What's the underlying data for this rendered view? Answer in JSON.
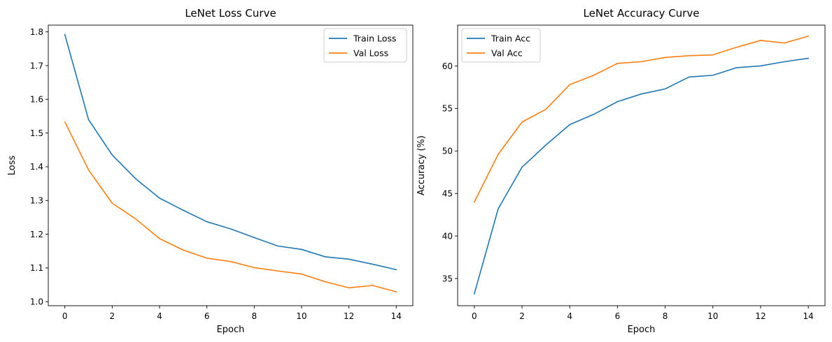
{
  "chart_data": [
    {
      "type": "line",
      "title": "LeNet Loss Curve",
      "xlabel": "Epoch",
      "ylabel": "Loss",
      "x": [
        0,
        1,
        2,
        3,
        4,
        5,
        6,
        7,
        8,
        9,
        10,
        11,
        12,
        13,
        14
      ],
      "xlim": [
        -0.7,
        14.7
      ],
      "ylim": [
        0.988,
        1.82
      ],
      "xticks": [
        0,
        2,
        4,
        6,
        8,
        10,
        12,
        14
      ],
      "yticks": [
        1.0,
        1.1,
        1.2,
        1.3,
        1.4,
        1.5,
        1.6,
        1.7,
        1.8
      ],
      "ytick_decimals": 1,
      "grid": false,
      "legend_position": "top-right",
      "series": [
        {
          "name": "Train Loss",
          "color": "#1f77b4",
          "values": [
            1.792,
            1.54,
            1.435,
            1.364,
            1.307,
            1.271,
            1.237,
            1.216,
            1.19,
            1.165,
            1.155,
            1.133,
            1.126,
            1.111,
            1.095
          ]
        },
        {
          "name": "Val Loss",
          "color": "#ff7f0e",
          "values": [
            1.533,
            1.391,
            1.292,
            1.245,
            1.187,
            1.153,
            1.129,
            1.119,
            1.101,
            1.091,
            1.082,
            1.059,
            1.041,
            1.048,
            1.029
          ]
        }
      ]
    },
    {
      "type": "line",
      "title": "LeNet Accuracy Curve",
      "xlabel": "Epoch",
      "ylabel": "Accuracy (%)",
      "x": [
        0,
        1,
        2,
        3,
        4,
        5,
        6,
        7,
        8,
        9,
        10,
        11,
        12,
        13,
        14
      ],
      "xlim": [
        -0.7,
        14.7
      ],
      "ylim": [
        31.8,
        64.8
      ],
      "xticks": [
        0,
        2,
        4,
        6,
        8,
        10,
        12,
        14
      ],
      "yticks": [
        35,
        40,
        45,
        50,
        55,
        60
      ],
      "ytick_decimals": 0,
      "grid": false,
      "legend_position": "top-left",
      "series": [
        {
          "name": "Train Acc",
          "color": "#1f77b4",
          "values": [
            33.2,
            43.2,
            48.1,
            50.7,
            53.1,
            54.3,
            55.8,
            56.7,
            57.3,
            58.7,
            58.9,
            59.8,
            60.0,
            60.5,
            60.9
          ]
        },
        {
          "name": "Val Acc",
          "color": "#ff7f0e",
          "values": [
            44.0,
            49.6,
            53.4,
            54.9,
            57.8,
            58.9,
            60.3,
            60.5,
            61.0,
            61.2,
            61.3,
            62.2,
            63.0,
            62.7,
            63.5
          ]
        }
      ]
    }
  ]
}
